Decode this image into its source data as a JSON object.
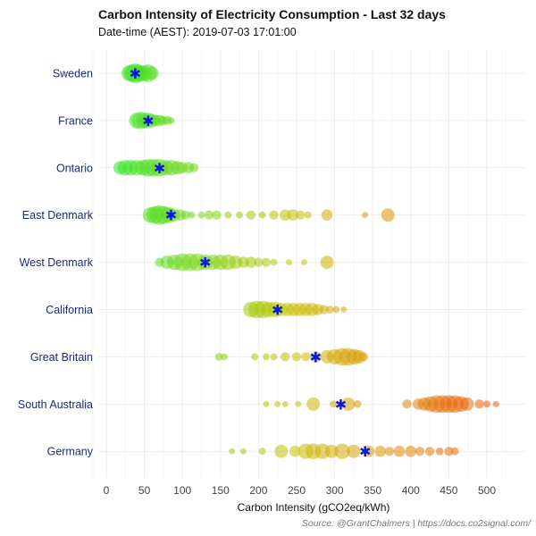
{
  "chart_data": {
    "type": "scatter",
    "title": "Carbon Intensity of Electricity Consumption - Last 32 days",
    "subtitle": "Date-time (AEST): 2019-07-03 17:01:00",
    "xlabel": "Carbon Intensity (gCO2eq/kWh)",
    "ylabel": "",
    "xlim": [
      -10,
      520
    ],
    "xticks": [
      0,
      50,
      100,
      150,
      200,
      250,
      300,
      350,
      400,
      450,
      500
    ],
    "caption": "Source: @GrantChalmers | https://docs.co2signal.com/",
    "mean_marker_label": "mean",
    "mean_marker_symbol": "✱",
    "color_scale": {
      "low": "#2ee82e",
      "mid": "#c8c000",
      "high": "#f05a10",
      "domain": [
        0,
        500
      ]
    },
    "series": [
      {
        "name": "Sweden",
        "mean": 38,
        "points": [
          [
            30,
            3
          ],
          [
            34,
            3.5
          ],
          [
            38,
            4
          ],
          [
            42,
            3.5
          ],
          [
            46,
            3
          ],
          [
            50,
            3
          ],
          [
            55,
            3.5
          ],
          [
            60,
            2.5
          ],
          [
            40,
            2.5
          ]
        ]
      },
      {
        "name": "France",
        "mean": 55,
        "points": [
          [
            40,
            3
          ],
          [
            45,
            3.5
          ],
          [
            50,
            3
          ],
          [
            55,
            3
          ],
          [
            60,
            2.5
          ],
          [
            65,
            2
          ],
          [
            70,
            2
          ],
          [
            75,
            1.5
          ],
          [
            80,
            1.5
          ],
          [
            85,
            1
          ]
        ]
      },
      {
        "name": "Ontario",
        "mean": 70,
        "points": [
          [
            18,
            2.5
          ],
          [
            25,
            3
          ],
          [
            32,
            3
          ],
          [
            40,
            3
          ],
          [
            48,
            3
          ],
          [
            55,
            3.5
          ],
          [
            62,
            3.5
          ],
          [
            70,
            3.5
          ],
          [
            78,
            3
          ],
          [
            86,
            3
          ],
          [
            94,
            2.5
          ],
          [
            100,
            2
          ],
          [
            108,
            2
          ],
          [
            115,
            1.5
          ]
        ]
      },
      {
        "name": "East Denmark",
        "mean": 85,
        "points": [
          [
            58,
            3
          ],
          [
            64,
            3.5
          ],
          [
            70,
            4
          ],
          [
            76,
            3.5
          ],
          [
            82,
            3
          ],
          [
            88,
            2.5
          ],
          [
            97,
            2
          ],
          [
            104,
            1.5
          ],
          [
            112,
            1
          ],
          [
            125,
            1
          ],
          [
            135,
            1.5
          ],
          [
            145,
            1.5
          ],
          [
            160,
            1
          ],
          [
            175,
            1
          ],
          [
            190,
            1.5
          ],
          [
            205,
            1
          ],
          [
            220,
            1.5
          ],
          [
            235,
            2
          ],
          [
            245,
            2
          ],
          [
            255,
            1.5
          ],
          [
            265,
            1
          ],
          [
            290,
            2
          ],
          [
            340,
            0.8
          ],
          [
            370,
            2.5
          ]
        ]
      },
      {
        "name": "West Denmark",
        "mean": 130,
        "points": [
          [
            70,
            1.5
          ],
          [
            80,
            2.5
          ],
          [
            90,
            3
          ],
          [
            100,
            3.5
          ],
          [
            110,
            3.5
          ],
          [
            120,
            3.5
          ],
          [
            130,
            3
          ],
          [
            140,
            3
          ],
          [
            150,
            3
          ],
          [
            160,
            3
          ],
          [
            170,
            2.5
          ],
          [
            180,
            2
          ],
          [
            190,
            2
          ],
          [
            200,
            1.5
          ],
          [
            210,
            1.5
          ],
          [
            220,
            1
          ],
          [
            240,
            0.8
          ],
          [
            260,
            0.8
          ],
          [
            290,
            2.5
          ]
        ]
      },
      {
        "name": "California",
        "mean": 225,
        "points": [
          [
            190,
            3
          ],
          [
            198,
            3.5
          ],
          [
            206,
            3.5
          ],
          [
            214,
            3
          ],
          [
            222,
            3
          ],
          [
            230,
            2.5
          ],
          [
            238,
            2.5
          ],
          [
            246,
            2.5
          ],
          [
            254,
            2.5
          ],
          [
            262,
            2.5
          ],
          [
            270,
            2.5
          ],
          [
            278,
            2
          ],
          [
            286,
            1.5
          ],
          [
            294,
            1.2
          ],
          [
            302,
            1
          ],
          [
            312,
            0.8
          ]
        ]
      },
      {
        "name": "Great Britain",
        "mean": 275,
        "points": [
          [
            148,
            1.2
          ],
          [
            155,
            1
          ],
          [
            195,
            1
          ],
          [
            210,
            1
          ],
          [
            220,
            1
          ],
          [
            235,
            1.5
          ],
          [
            250,
            1.5
          ],
          [
            262,
            1.5
          ],
          [
            275,
            2
          ],
          [
            290,
            2.5
          ],
          [
            300,
            3
          ],
          [
            310,
            3.5
          ],
          [
            318,
            3.5
          ],
          [
            326,
            3
          ],
          [
            332,
            2.5
          ],
          [
            338,
            1.5
          ]
        ]
      },
      {
        "name": "South Australia",
        "mean": 308,
        "points": [
          [
            210,
            0.8
          ],
          [
            225,
            0.8
          ],
          [
            235,
            0.8
          ],
          [
            252,
            0.8
          ],
          [
            272,
            2.5
          ],
          [
            298,
            1
          ],
          [
            318,
            2.5
          ],
          [
            330,
            1.2
          ],
          [
            395,
            1.5
          ],
          [
            410,
            2
          ],
          [
            418,
            2.5
          ],
          [
            426,
            3
          ],
          [
            434,
            3.5
          ],
          [
            442,
            3.5
          ],
          [
            450,
            3.5
          ],
          [
            458,
            3.5
          ],
          [
            466,
            3
          ],
          [
            474,
            2.5
          ],
          [
            490,
            1.5
          ],
          [
            500,
            1
          ],
          [
            512,
            0.8
          ]
        ]
      },
      {
        "name": "Germany",
        "mean": 340,
        "points": [
          [
            165,
            0.8
          ],
          [
            180,
            0.8
          ],
          [
            205,
            1
          ],
          [
            230,
            2.5
          ],
          [
            248,
            2
          ],
          [
            262,
            3
          ],
          [
            272,
            3
          ],
          [
            284,
            3
          ],
          [
            296,
            2.5
          ],
          [
            310,
            3
          ],
          [
            325,
            2.5
          ],
          [
            345,
            2
          ],
          [
            360,
            2
          ],
          [
            372,
            1.5
          ],
          [
            385,
            2
          ],
          [
            400,
            2
          ],
          [
            412,
            1.5
          ],
          [
            425,
            1.5
          ],
          [
            438,
            1.2
          ],
          [
            450,
            1.5
          ],
          [
            458,
            1.2
          ]
        ]
      }
    ]
  }
}
